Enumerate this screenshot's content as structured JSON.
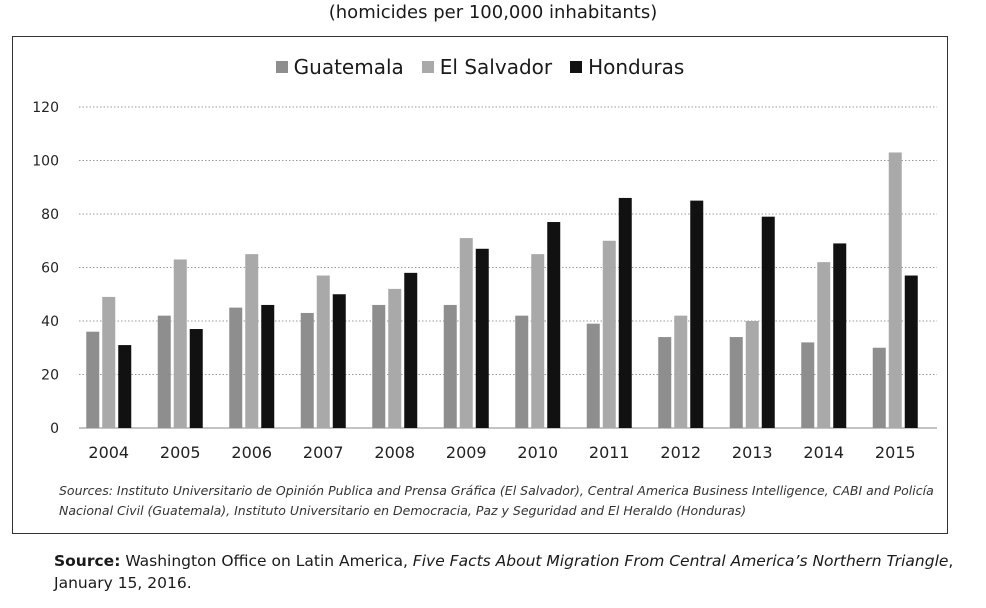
{
  "subtitle": "(homicides per 100,000 inhabitants)",
  "chart_data": {
    "type": "bar",
    "categories": [
      "2004",
      "2005",
      "2006",
      "2007",
      "2008",
      "2009",
      "2010",
      "2011",
      "2012",
      "2013",
      "2014",
      "2015"
    ],
    "series": [
      {
        "name": "Guatemala",
        "color": "#8e8e8e",
        "values": [
          36,
          42,
          45,
          43,
          46,
          46,
          42,
          39,
          34,
          34,
          32,
          30
        ]
      },
      {
        "name": "El Salvador",
        "color": "#a9a9a9",
        "values": [
          49,
          63,
          65,
          57,
          52,
          71,
          65,
          70,
          42,
          40,
          62,
          103
        ]
      },
      {
        "name": "Honduras",
        "color": "#111111",
        "values": [
          31,
          37,
          46,
          50,
          58,
          67,
          77,
          86,
          85,
          79,
          69,
          57
        ]
      }
    ],
    "ylim": [
      0,
      120
    ],
    "yticks": [
      0,
      20,
      40,
      60,
      80,
      100,
      120
    ],
    "grid": true,
    "legend": "top-center"
  },
  "sources": "Sources: Instituto Universitario de Opinión Publica and Prensa Gráfica (El Salvador), Central America Business Intelligence, CABI and Policía Nacional Civil (Guatemala), Instituto Universitario en Democracia, Paz y Seguridad and El Heraldo (Honduras)",
  "source_note": {
    "label": "Source:",
    "org": " Washington Office on Latin America, ",
    "title": "Five Facts About Migration From Central America’s Northern Triangle",
    "date": ", January 15, 2016."
  }
}
